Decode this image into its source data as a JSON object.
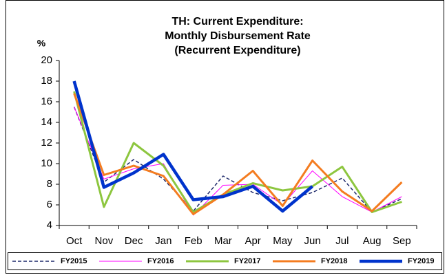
{
  "chart_data": {
    "type": "line",
    "title": [
      "TH: Current Expenditure:",
      "Monthly Disbursement Rate",
      "(Recurrent Expenditure)"
    ],
    "y_label": "%",
    "categories": [
      "Oct",
      "Nov",
      "Dec",
      "Jan",
      "Feb",
      "Mar",
      "Apr",
      "May",
      "Jun",
      "Jul",
      "Aug",
      "Sep"
    ],
    "series": [
      {
        "name": "FY2015",
        "color": "#1f2a6b",
        "line_width": 1.5,
        "dashed": true,
        "values": [
          15.5,
          8.2,
          10.4,
          8.5,
          5.4,
          8.8,
          7.2,
          6.4,
          7.2,
          8.6,
          5.3,
          6.6
        ]
      },
      {
        "name": "FY2016",
        "color": "#ff00ff",
        "line_width": 1,
        "dashed": false,
        "values": [
          15.5,
          8.5,
          9.5,
          10.0,
          5.0,
          7.9,
          8.0,
          6.0,
          9.3,
          6.8,
          5.3,
          6.8
        ]
      },
      {
        "name": "FY2017",
        "color": "#8dc63f",
        "line_width": 3,
        "dashed": false,
        "values": [
          17.0,
          5.8,
          12.0,
          9.8,
          5.3,
          7.0,
          8.1,
          7.4,
          7.8,
          9.7,
          5.3,
          6.3
        ]
      },
      {
        "name": "FY2018",
        "color": "#f47c20",
        "line_width": 3,
        "dashed": false,
        "values": [
          16.8,
          8.9,
          9.8,
          8.8,
          5.1,
          7.0,
          9.3,
          5.9,
          10.3,
          7.3,
          5.4,
          8.2
        ]
      },
      {
        "name": "FY2019",
        "color": "#0033cc",
        "line_width": 4.5,
        "dashed": false,
        "values": [
          18.0,
          7.7,
          9.1,
          10.9,
          6.5,
          6.8,
          7.8,
          5.4,
          7.8,
          null,
          null,
          null
        ]
      }
    ],
    "ylim": [
      4,
      20
    ],
    "yticks": [
      4,
      6,
      8,
      10,
      12,
      14,
      16,
      18,
      20
    ],
    "grid": false,
    "legend": "bottom"
  }
}
